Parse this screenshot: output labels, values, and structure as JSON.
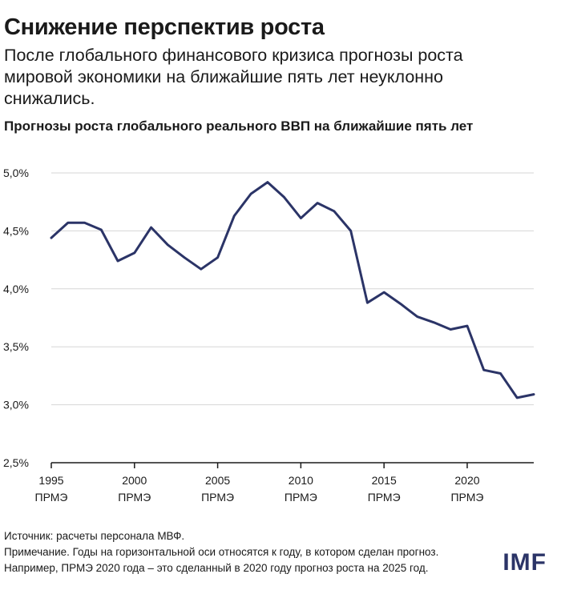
{
  "header": {
    "title": "Снижение перспектив роста",
    "subtitle": "После глобального финансового кризиса прогнозы роста мировой экономики на ближайшие пять лет неуклонно снижались."
  },
  "chart_data": {
    "type": "line",
    "title": "Прогнозы роста глобального реального ВВП на ближайшие пять лет",
    "xlabel": "",
    "ylabel": "",
    "x": [
      1995,
      1996,
      1997,
      1998,
      1999,
      2000,
      2001,
      2002,
      2003,
      2004,
      2005,
      2006,
      2007,
      2008,
      2009,
      2010,
      2011,
      2012,
      2013,
      2014,
      2015,
      2016,
      2017,
      2018,
      2019,
      2020,
      2021,
      2022,
      2023,
      2024
    ],
    "series": [
      {
        "values": [
          4.44,
          4.57,
          4.57,
          4.51,
          4.24,
          4.31,
          4.53,
          4.38,
          4.27,
          4.17,
          4.27,
          4.63,
          4.82,
          4.92,
          4.79,
          4.61,
          4.74,
          4.67,
          4.5,
          3.88,
          3.97,
          3.87,
          3.76,
          3.71,
          3.65,
          3.68,
          3.3,
          3.27,
          3.06,
          3.09
        ],
        "color": "#2b3467"
      }
    ],
    "ylim": [
      2.5,
      5.0
    ],
    "yticks": [
      "5,0%",
      "4,5%",
      "4,0%",
      "3,5%",
      "3,0%",
      "2,5%"
    ],
    "ytick_values": [
      5.0,
      4.5,
      4.0,
      3.5,
      3.0,
      2.5
    ],
    "xticks": [
      {
        "year": 1995,
        "line1": "1995",
        "line2": "ПРМЭ"
      },
      {
        "year": 2000,
        "line1": "2000",
        "line2": "ПРМЭ"
      },
      {
        "year": 2005,
        "line1": "2005",
        "line2": "ПРМЭ"
      },
      {
        "year": 2010,
        "line1": "2010",
        "line2": "ПРМЭ"
      },
      {
        "year": 2015,
        "line1": "2015",
        "line2": "ПРМЭ"
      },
      {
        "year": 2020,
        "line1": "2020",
        "line2": "ПРМЭ"
      }
    ],
    "grid": true
  },
  "footer": {
    "source": "Источник: расчеты персонала МВФ.",
    "note1": "Примечание. Годы на горизонтальной оси относятся к году, в котором сделан прогноз.",
    "note2": "Например, ПРМЭ 2020 года – это сделанный в 2020 году прогноз роста на 2025 год.",
    "logo": "IMF"
  }
}
